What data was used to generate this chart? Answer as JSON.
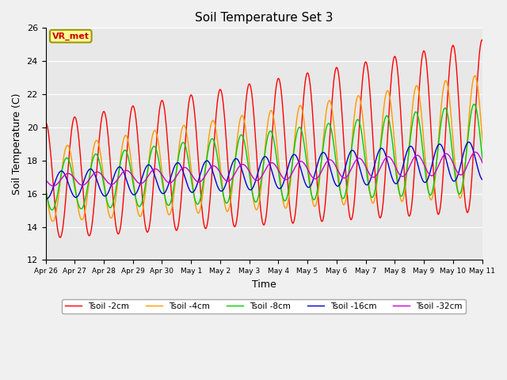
{
  "title": "Soil Temperature Set 3",
  "xlabel": "Time",
  "ylabel": "Soil Temperature (C)",
  "ylim": [
    12,
    26
  ],
  "yticks": [
    12,
    14,
    16,
    18,
    20,
    22,
    24,
    26
  ],
  "plot_bg_color": "#e8e8e8",
  "fig_bg_color": "#f0f0f0",
  "colors": {
    "2cm": "#ff0000",
    "4cm": "#ff9900",
    "8cm": "#00cc00",
    "16cm": "#0000cc",
    "32cm": "#cc00cc"
  },
  "legend_labels": [
    "Tsoil -2cm",
    "Tsoil -4cm",
    "Tsoil -8cm",
    "Tsoil -16cm",
    "Tsoil -32cm"
  ],
  "annotation_text": "VR_met",
  "annotation_bg": "#ffff99",
  "annotation_border": "#999900",
  "tick_labels": [
    "Apr 26",
    "Apr 27",
    "Apr 28",
    "Apr 29",
    "Apr 30",
    "May 1",
    "May 2",
    "May 3",
    "May 4",
    "May 5",
    "May 6",
    "May 7",
    "May 8",
    "May 9",
    "May 10",
    "May 11"
  ]
}
